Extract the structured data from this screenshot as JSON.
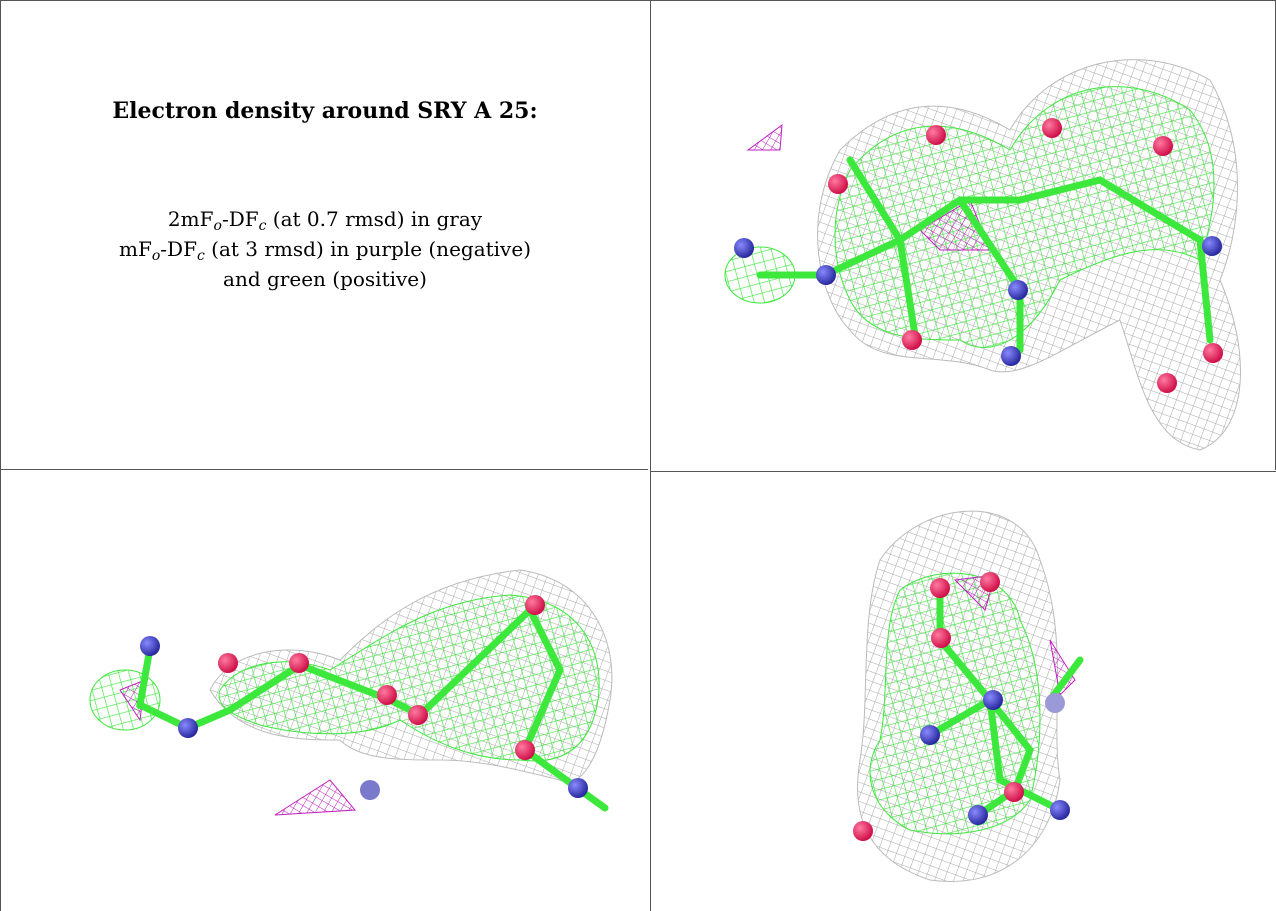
{
  "figure": {
    "title": "Electron density around SRY A 25:",
    "legend": [
      [
        "2mF",
        "o",
        "-DF",
        "c",
        " (at 0.7 rmsd) in gray"
      ],
      [
        "mF",
        "o",
        "-DF",
        "c",
        " (at 3 rmsd) in purple (negative)"
      ],
      [
        "and green (positive)"
      ]
    ]
  }
}
